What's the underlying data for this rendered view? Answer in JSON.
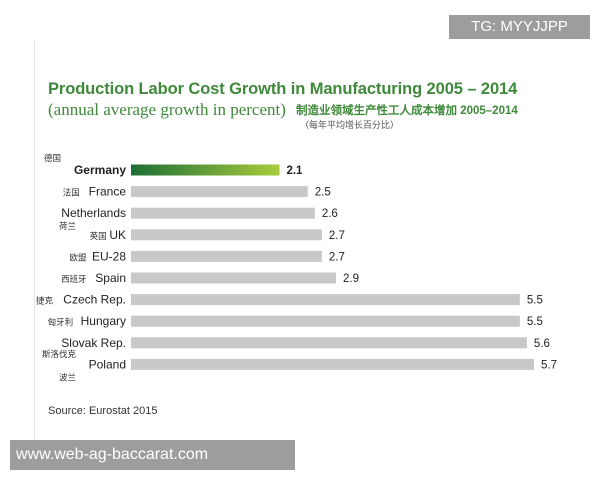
{
  "header": {
    "title": "Production Labor Cost Growth in Manufacturing 2005 – 2014",
    "subtitle": "(annual average growth in percent)",
    "zh_title": "制造业领域生产性工人成本增加  2005–2014",
    "zh_subtitle": "（每年平均增长百分比）"
  },
  "source": "Source: Eurostat 2015",
  "watermarks": {
    "top": "TG: MYYJJPP",
    "bottom": "www.web-ag-baccarat.com"
  },
  "colors": {
    "title_green": "#3f8a3a",
    "highlight_start": "#1d6e35",
    "highlight_end": "#a9cc3c",
    "bar_gray": "#c8c8c8"
  },
  "chart_data": {
    "type": "bar",
    "orientation": "horizontal",
    "title": "Production Labor Cost Growth in Manufacturing 2005 – 2014",
    "subtitle": "(annual average growth in percent)",
    "xlabel": "",
    "ylabel": "",
    "xlim": [
      0,
      5.7
    ],
    "grid": false,
    "legend": "none",
    "highlight": "Germany",
    "categories": [
      {
        "name": "Germany",
        "zh": "德国",
        "value": 2.1
      },
      {
        "name": "France",
        "zh": "法国",
        "value": 2.5
      },
      {
        "name": "Netherlands",
        "zh": "荷兰",
        "value": 2.6
      },
      {
        "name": "UK",
        "zh": "英国",
        "value": 2.7
      },
      {
        "name": "EU-28",
        "zh": "欧盟",
        "value": 2.7
      },
      {
        "name": "Spain",
        "zh": "西班牙",
        "value": 2.9
      },
      {
        "name": "Czech Rep.",
        "zh": "捷克",
        "value": 5.5
      },
      {
        "name": "Hungary",
        "zh": "匈牙利",
        "value": 5.5
      },
      {
        "name": "Slovak Rep.",
        "zh": "斯洛伐克",
        "value": 5.6
      },
      {
        "name": "Poland",
        "zh": "波兰",
        "value": 5.7
      }
    ]
  }
}
